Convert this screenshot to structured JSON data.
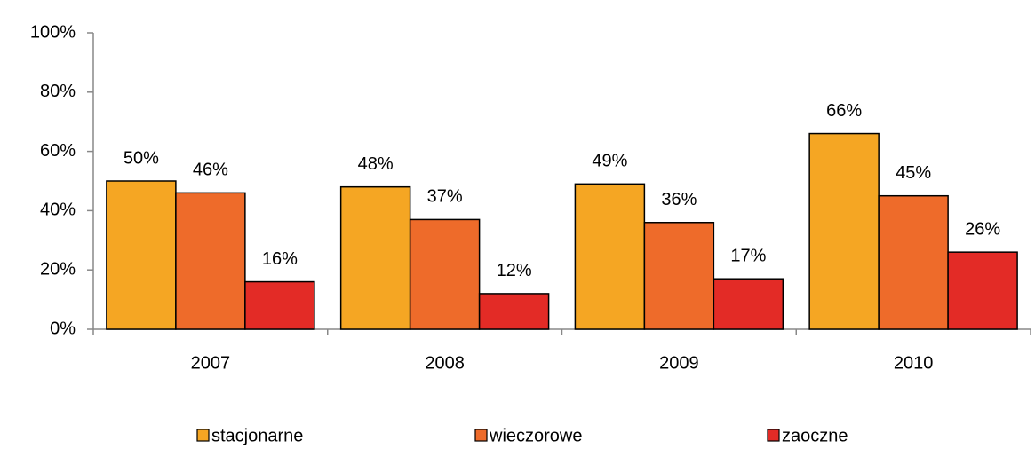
{
  "chart_data": {
    "type": "bar",
    "categories": [
      "2007",
      "2008",
      "2009",
      "2010"
    ],
    "series": [
      {
        "name": "stacjonarne",
        "color": "#f5a623",
        "values": [
          50,
          48,
          49,
          66
        ],
        "value_labels": [
          "50%",
          "48%",
          "49%",
          "66%"
        ]
      },
      {
        "name": "wieczorowe",
        "color": "#ee6b2a",
        "values": [
          46,
          37,
          36,
          45
        ],
        "value_labels": [
          "46%",
          "37%",
          "36%",
          "45%"
        ]
      },
      {
        "name": "zaoczne",
        "color": "#e32b26",
        "values": [
          16,
          12,
          17,
          26
        ],
        "value_labels": [
          "16%",
          "12%",
          "17%",
          "26%"
        ]
      }
    ],
    "ylim": [
      0,
      100
    ],
    "yticks": [
      {
        "value": 0,
        "label": "0%"
      },
      {
        "value": 20,
        "label": "20%"
      },
      {
        "value": 40,
        "label": "40%"
      },
      {
        "value": 60,
        "label": "60%"
      },
      {
        "value": 80,
        "label": "80%"
      },
      {
        "value": 100,
        "label": "100%"
      }
    ],
    "grid": false,
    "legend": "bottom"
  }
}
